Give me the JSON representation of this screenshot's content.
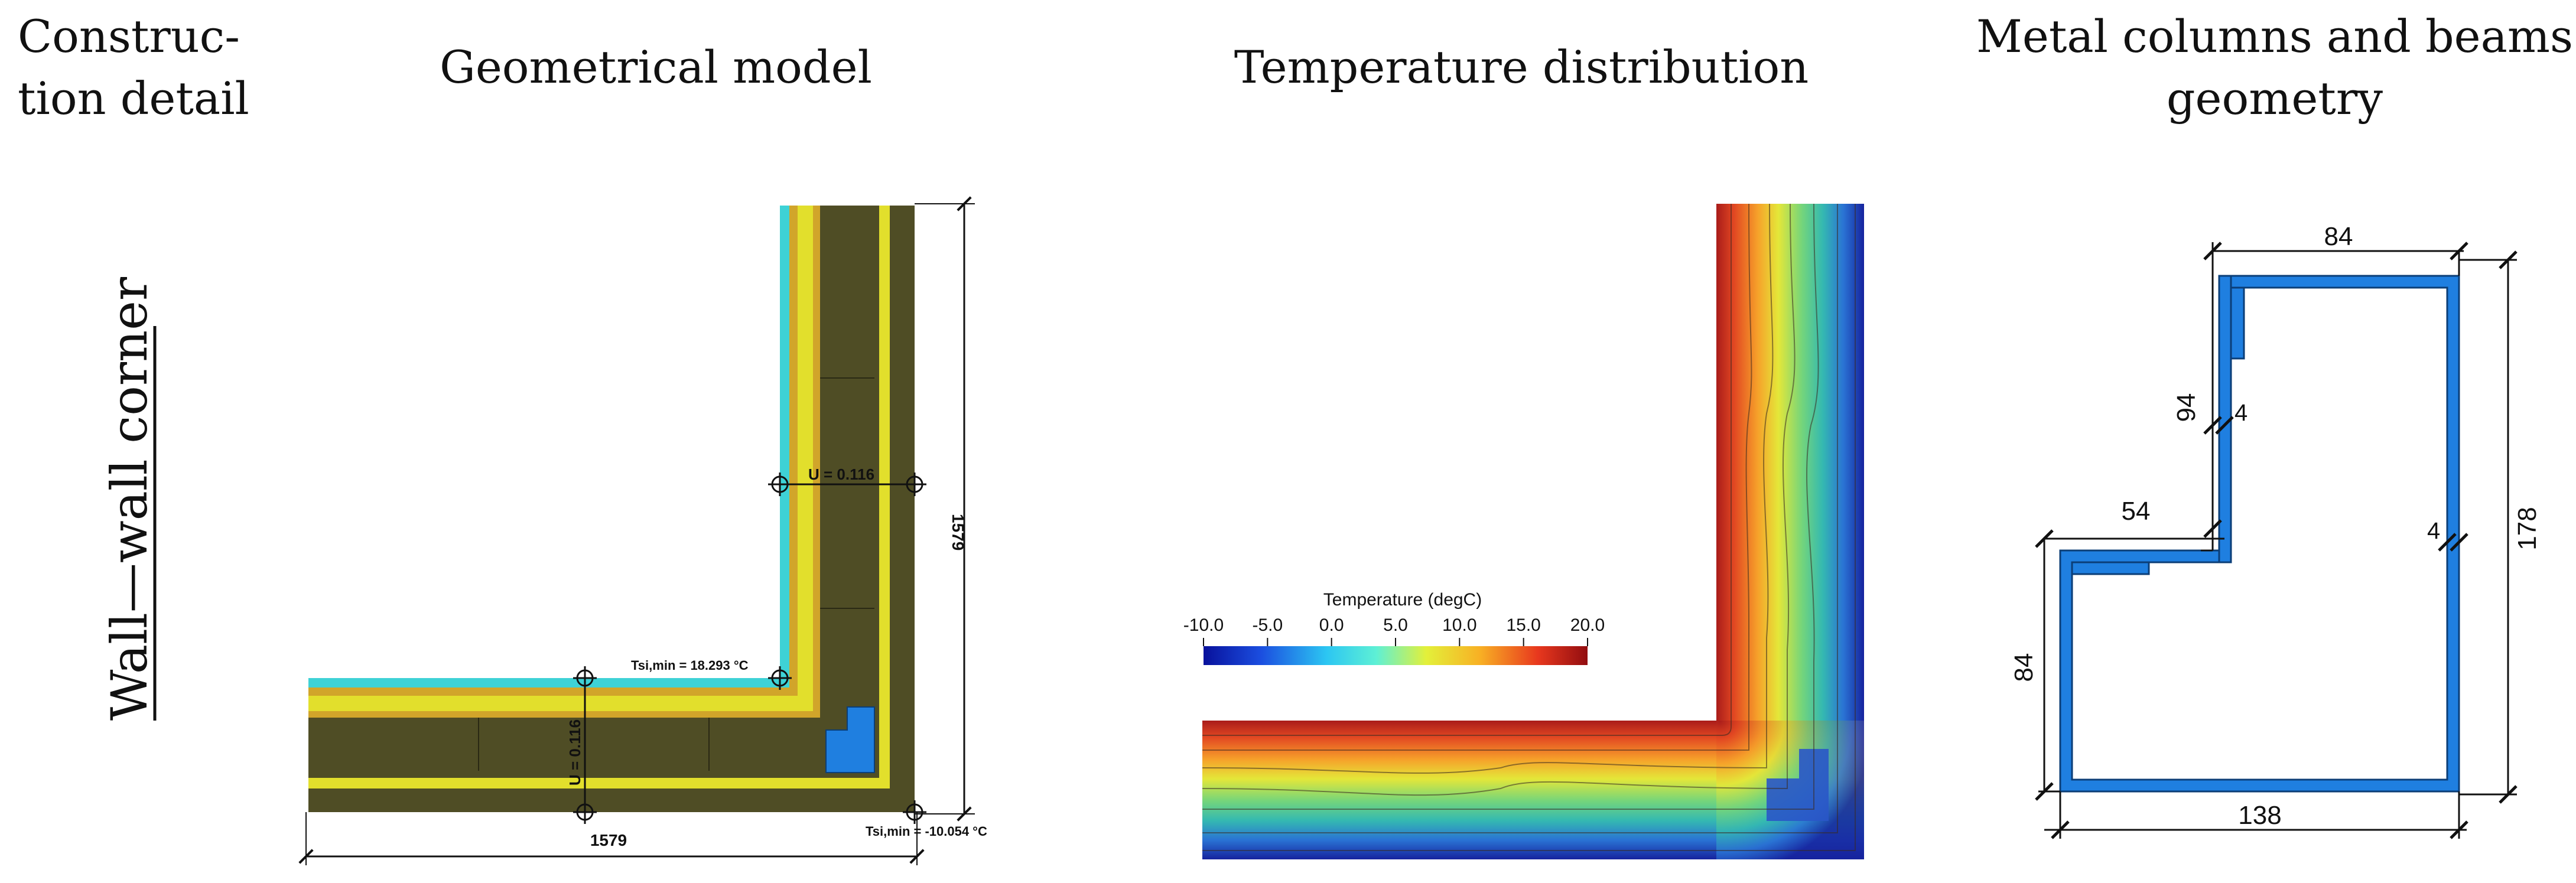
{
  "headers": {
    "construction_detail": [
      "Construc-",
      "tion detail"
    ],
    "geometrical_model": "Geometrical model",
    "temperature_distribution": "Temperature distribution",
    "metal_geometry": [
      "Metal columns and beams",
      "geometry"
    ]
  },
  "row_label": "Wall—wall corner",
  "geometric_model": {
    "u_value_vertical": "U = 0.116",
    "u_value_horizontal": "U = 0.116",
    "tsi_min_inner": "Tsi,min = 18.293 °C",
    "tsi_min_outer": "Tsi,min = -10.054 °C",
    "dim_height": "1579",
    "dim_width": "1579"
  },
  "temperature": {
    "title": "Temperature (degC)",
    "ticks": [
      "-10.0",
      "-5.0",
      "0.0",
      "5.0",
      "10.0",
      "15.0",
      "20.0"
    ]
  },
  "metal_profile": {
    "dim_top": "84",
    "dim_left_upper": "94",
    "dim_thickness_upper": "4",
    "dim_ledge": "54",
    "dim_thickness_right": "4",
    "dim_right": "178",
    "dim_left_lower": "84",
    "dim_bottom": "138"
  },
  "colors": {
    "wall_core": "#4f4d25",
    "insulation_yellow": "#e2df2c",
    "plaster_ochre": "#d1a52a",
    "inner_finish_cyan": "#3ed2d6",
    "steel_blue": "#1f7fe0"
  }
}
